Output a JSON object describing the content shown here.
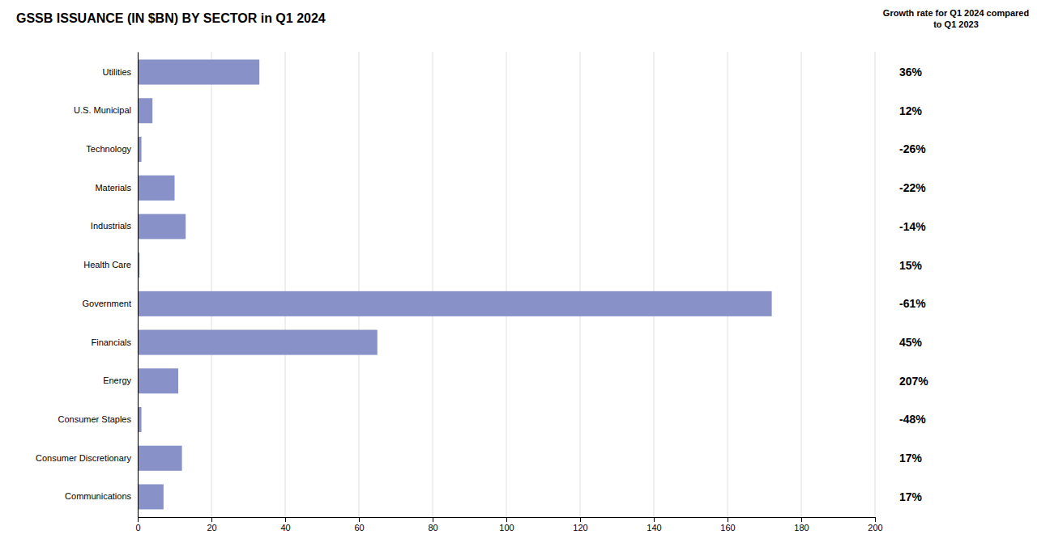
{
  "chart_data": {
    "type": "bar",
    "orientation": "horizontal",
    "title": "GSSB ISSUANCE (IN $BN) BY SECTOR in Q1 2024",
    "annotation_title": "Growth rate for Q1 2024 compared\nto Q1 2023",
    "categories": [
      "Utilities",
      "U.S. Municipal",
      "Technology",
      "Materials",
      "Industrials",
      "Health Care",
      "Government",
      "Financials",
      "Energy",
      "Consumer Staples",
      "Consumer Discretionary",
      "Communications"
    ],
    "values": [
      33,
      4,
      1,
      10,
      13,
      0.5,
      172,
      65,
      11,
      1,
      12,
      7
    ],
    "annotations": [
      "36%",
      "12%",
      "-26%",
      "-22%",
      "-14%",
      "15%",
      "-61%",
      "45%",
      "207%",
      "-48%",
      "17%",
      "17%"
    ],
    "color": "#8892c8",
    "xlim": [
      0,
      200
    ],
    "xticks": [
      0,
      20,
      40,
      60,
      80,
      100,
      120,
      140,
      160,
      180,
      200
    ],
    "grid": true
  }
}
